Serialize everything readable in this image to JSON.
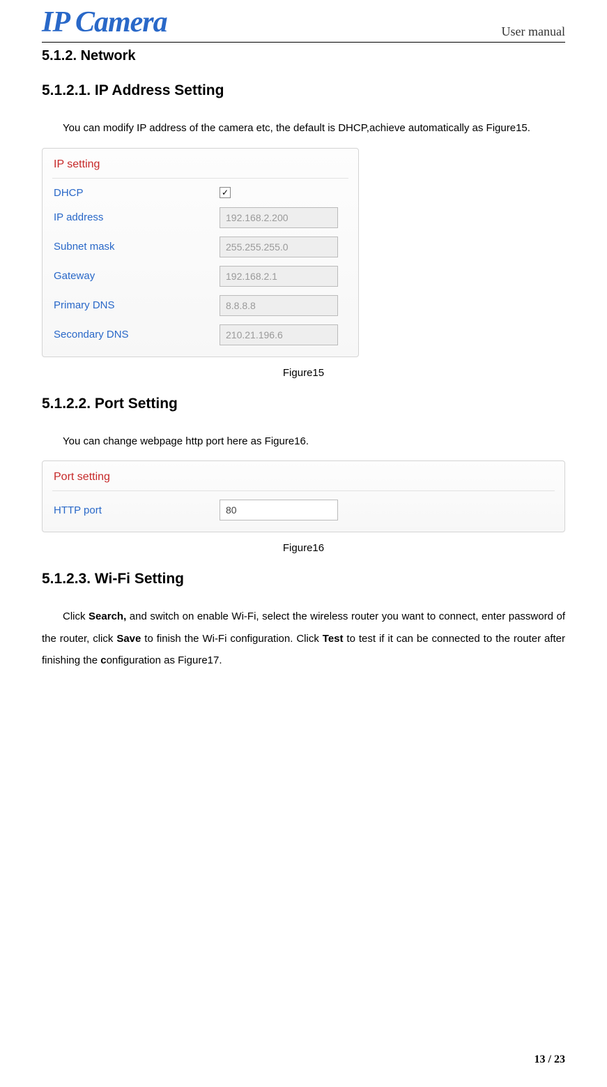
{
  "header": {
    "logo_text": "IP Camera",
    "right_text": "User manual"
  },
  "section_network": {
    "number_title": "5.1.2.  Network"
  },
  "section_ip": {
    "number_title": "5.1.2.1. IP Address Setting",
    "body": "You can modify IP address of the camera etc, the default is DHCP,achieve automatically as Figure15.",
    "panel_title": "IP setting",
    "rows": {
      "dhcp": {
        "label": "DHCP",
        "checked": "✓"
      },
      "ip_address": {
        "label": "IP address",
        "value": "192.168.2.200"
      },
      "subnet_mask": {
        "label": "Subnet mask",
        "value": "255.255.255.0"
      },
      "gateway": {
        "label": "Gateway",
        "value": "192.168.2.1"
      },
      "primary_dns": {
        "label": "Primary DNS",
        "value": "8.8.8.8"
      },
      "secondary_dns": {
        "label": "Secondary DNS",
        "value": "210.21.196.6"
      }
    },
    "caption": "Figure15"
  },
  "section_port": {
    "number_title": "5.1.2.2. Port Setting",
    "body": "You can change webpage http port here as Figure16.",
    "panel_title": "Port setting",
    "row": {
      "label": "HTTP port",
      "value": "80"
    },
    "caption": "Figure16"
  },
  "section_wifi": {
    "number_title": "5.1.2.3. Wi-Fi Setting",
    "body_pre": "Click ",
    "body_search": "Search,",
    "body_mid1": " and switch on enable Wi-Fi, select the wireless router you want to connect, enter password of the router, click ",
    "body_save": "Save",
    "body_mid2": " to finish the Wi-Fi configuration. Click ",
    "body_test": "Test",
    "body_post": " to test if it can be connected to the router after finishing the ",
    "body_c": "c",
    "body_end": "onfiguration as Figure17."
  },
  "footer": {
    "page": "13 / 23"
  }
}
